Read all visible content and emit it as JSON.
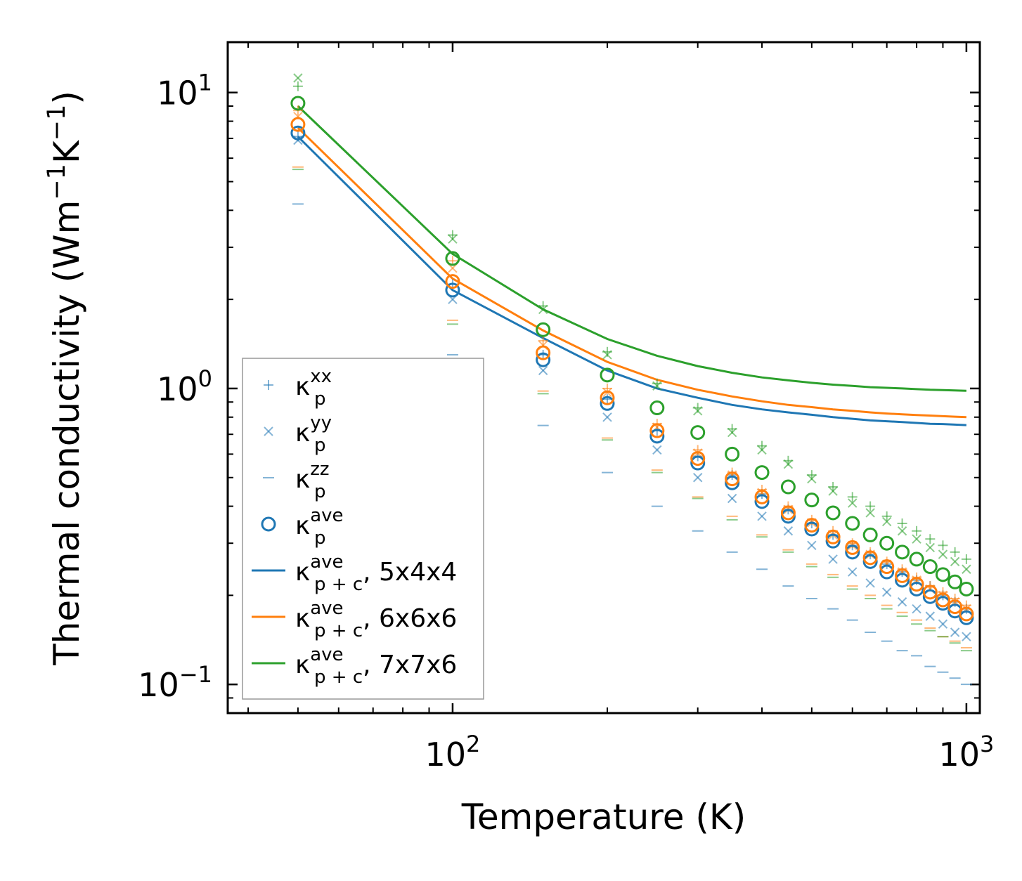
{
  "chart_data": {
    "type": "scatter",
    "xlabel": "Temperature (K)",
    "ylabel": "Thermal conductivity (Wm",
    "ylabel_sup1": "−1",
    "ylabel_mid": "K",
    "ylabel_sup2": "−1",
    "ylabel_end": ")",
    "xscale": "log",
    "yscale": "log",
    "xlim": [
      36.5,
      1062
    ],
    "ylim": [
      0.08,
      14.8
    ],
    "x_ticks": [
      {
        "value": 100,
        "base": "10",
        "exp": "2"
      },
      {
        "value": 1000,
        "base": "10",
        "exp": "3"
      }
    ],
    "y_ticks": [
      {
        "value": 0.1,
        "base": "10",
        "exp": "−1"
      },
      {
        "value": 1,
        "base": "10",
        "exp": "0"
      },
      {
        "value": 10,
        "base": "10",
        "exp": "1"
      }
    ],
    "x": [
      50,
      100,
      150,
      200,
      250,
      300,
      350,
      400,
      450,
      500,
      550,
      600,
      650,
      700,
      750,
      800,
      850,
      900,
      950,
      1000
    ],
    "colors": {
      "s5": "#1f77b4",
      "s6": "#ff7f0e",
      "s7": "#2ca02c"
    },
    "legend": {
      "position": "lower-left",
      "entries": [
        {
          "marker": "plus",
          "base": "κ",
          "sup": "xx",
          "sub": "p",
          "suffix": ""
        },
        {
          "marker": "cross",
          "base": "κ",
          "sup": "yy",
          "sub": "p",
          "suffix": ""
        },
        {
          "marker": "dash",
          "base": "κ",
          "sup": "zz",
          "sub": "p",
          "suffix": ""
        },
        {
          "marker": "circle",
          "base": "κ",
          "sup": "ave",
          "sub": "p",
          "suffix": ""
        },
        {
          "marker": "line",
          "color_key": "s5",
          "base": "κ",
          "sup": "ave",
          "sub": "p + c",
          "suffix": ", 5x4x4"
        },
        {
          "marker": "line",
          "color_key": "s6",
          "base": "κ",
          "sup": "ave",
          "sub": "p + c",
          "suffix": ", 6x6x6"
        },
        {
          "marker": "line",
          "color_key": "s7",
          "base": "κ",
          "sup": "ave",
          "sub": "p + c",
          "suffix": ", 7x7x6"
        }
      ]
    },
    "series": [
      {
        "name": "5x4x4",
        "color_key": "s5",
        "kxx": [
          7.1,
          2.25,
          1.3,
          0.92,
          0.72,
          0.59,
          0.51,
          0.44,
          0.39,
          0.35,
          0.32,
          0.295,
          0.275,
          0.255,
          0.24,
          0.225,
          0.215,
          0.2,
          0.19,
          0.18
        ],
        "kyy": [
          6.9,
          2.0,
          1.15,
          0.8,
          0.62,
          0.5,
          0.425,
          0.37,
          0.33,
          0.295,
          0.265,
          0.24,
          0.22,
          0.205,
          0.19,
          0.18,
          0.17,
          0.16,
          0.15,
          0.145
        ],
        "kzz": [
          4.2,
          1.3,
          0.75,
          0.52,
          0.4,
          0.33,
          0.28,
          0.245,
          0.215,
          0.195,
          0.18,
          0.165,
          0.15,
          0.14,
          0.13,
          0.125,
          0.115,
          0.11,
          0.105,
          0.1
        ],
        "kave": [
          7.3,
          2.15,
          1.25,
          0.89,
          0.69,
          0.56,
          0.48,
          0.415,
          0.37,
          0.335,
          0.305,
          0.28,
          0.26,
          0.24,
          0.225,
          0.21,
          0.198,
          0.188,
          0.177,
          0.168
        ],
        "kpc": [
          7.1,
          2.15,
          1.48,
          1.15,
          1.0,
          0.93,
          0.88,
          0.85,
          0.83,
          0.815,
          0.8,
          0.79,
          0.78,
          0.775,
          0.77,
          0.765,
          0.76,
          0.758,
          0.755,
          0.752
        ]
      },
      {
        "name": "6x6x6",
        "color_key": "s6",
        "kxx": [
          8.7,
          2.7,
          1.45,
          1.0,
          0.76,
          0.62,
          0.52,
          0.455,
          0.4,
          0.36,
          0.33,
          0.3,
          0.28,
          0.26,
          0.245,
          0.23,
          0.215,
          0.205,
          0.195,
          0.185
        ],
        "kyy": [
          8.3,
          2.55,
          1.4,
          0.97,
          0.74,
          0.605,
          0.51,
          0.445,
          0.39,
          0.352,
          0.32,
          0.295,
          0.275,
          0.255,
          0.24,
          0.225,
          0.21,
          0.2,
          0.19,
          0.18
        ],
        "kzz": [
          5.6,
          1.7,
          0.98,
          0.68,
          0.53,
          0.43,
          0.37,
          0.32,
          0.285,
          0.255,
          0.235,
          0.215,
          0.2,
          0.185,
          0.175,
          0.165,
          0.155,
          0.145,
          0.14,
          0.133
        ],
        "kave": [
          7.8,
          2.3,
          1.32,
          0.93,
          0.72,
          0.58,
          0.495,
          0.43,
          0.38,
          0.345,
          0.315,
          0.29,
          0.268,
          0.25,
          0.233,
          0.218,
          0.205,
          0.193,
          0.183,
          0.173
        ],
        "kpc": [
          7.6,
          2.35,
          1.57,
          1.23,
          1.07,
          0.99,
          0.94,
          0.905,
          0.88,
          0.865,
          0.85,
          0.84,
          0.83,
          0.823,
          0.818,
          0.813,
          0.81,
          0.806,
          0.803,
          0.8
        ]
      },
      {
        "name": "7x7x6",
        "color_key": "s7",
        "kxx": [
          10.5,
          3.3,
          1.9,
          1.33,
          1.04,
          0.86,
          0.73,
          0.64,
          0.57,
          0.51,
          0.465,
          0.43,
          0.4,
          0.37,
          0.35,
          0.33,
          0.31,
          0.295,
          0.28,
          0.265
        ],
        "kyy": [
          11.2,
          3.2,
          1.85,
          1.3,
          1.02,
          0.84,
          0.71,
          0.62,
          0.555,
          0.495,
          0.45,
          0.41,
          0.38,
          0.355,
          0.33,
          0.31,
          0.29,
          0.275,
          0.26,
          0.245
        ],
        "kzz": [
          5.5,
          1.65,
          0.96,
          0.67,
          0.52,
          0.425,
          0.36,
          0.315,
          0.28,
          0.25,
          0.23,
          0.21,
          0.195,
          0.18,
          0.17,
          0.16,
          0.152,
          0.145,
          0.138,
          0.13
        ],
        "kave": [
          9.2,
          2.75,
          1.58,
          1.11,
          0.86,
          0.71,
          0.6,
          0.52,
          0.465,
          0.42,
          0.38,
          0.35,
          0.32,
          0.3,
          0.28,
          0.265,
          0.25,
          0.235,
          0.222,
          0.21
        ],
        "kpc": [
          9.0,
          2.85,
          1.85,
          1.47,
          1.29,
          1.19,
          1.13,
          1.09,
          1.065,
          1.045,
          1.03,
          1.02,
          1.01,
          1.005,
          1.0,
          0.995,
          0.99,
          0.988,
          0.985,
          0.982
        ]
      }
    ]
  }
}
